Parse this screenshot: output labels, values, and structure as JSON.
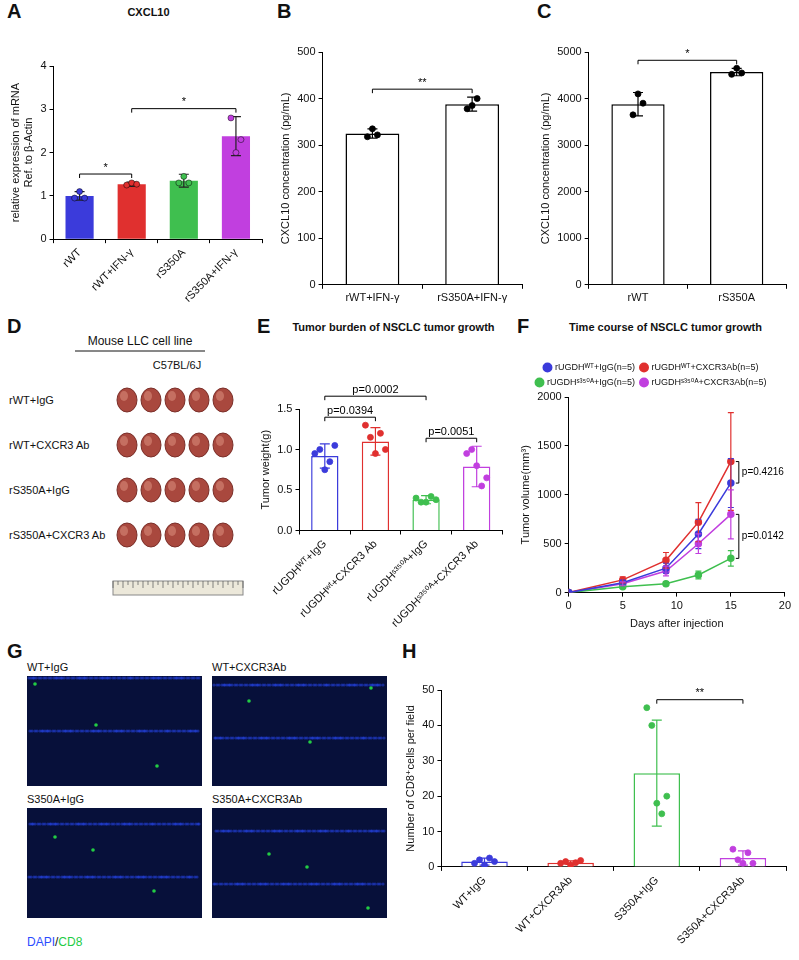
{
  "chart_data": [
    {
      "panel": "A",
      "type": "bar",
      "title": "CXCL10",
      "y_label": "relative expression of mRNA Ref. to β-Actin",
      "categories": [
        "rWT",
        "rWT+IFN-γ",
        "rS350A",
        "rS350A+IFN-γ"
      ],
      "values": [
        1.0,
        1.27,
        1.35,
        2.38
      ],
      "errors": [
        0.1,
        0.05,
        0.15,
        0.45
      ],
      "points": [
        [
          0.95,
          1.1,
          0.95
        ],
        [
          1.25,
          1.3,
          1.27
        ],
        [
          1.3,
          1.45,
          1.3
        ],
        [
          2.8,
          2.0,
          2.3
        ]
      ],
      "colors": [
        "#3b3bdb",
        "#e0302f",
        "#3fbf4f",
        "#c13fdf"
      ],
      "marker": "filled",
      "ylim": [
        0,
        4
      ],
      "yticks": [
        0,
        1,
        2,
        3,
        4
      ],
      "grid": false,
      "annotations": [
        {
          "text": "*",
          "from": 0,
          "to": 1
        },
        {
          "text": "*",
          "from": 1,
          "to": 3
        }
      ]
    },
    {
      "panel": "B",
      "type": "bar",
      "y_label": "CXCL10 concentration (pg/mL)",
      "categories": [
        "rWT+IFN-γ",
        "rS350A+IFN-γ"
      ],
      "values": [
        325,
        388
      ],
      "errors": [
        10,
        15
      ],
      "points": [
        [
          318,
          335,
          322
        ],
        [
          378,
          385,
          400
        ]
      ],
      "color": "#000000",
      "marker": "hollow",
      "ylim": [
        0,
        500
      ],
      "yticks": [
        0,
        100,
        200,
        300,
        400,
        500
      ],
      "grid": false,
      "annotations": [
        {
          "text": "**",
          "from": 0,
          "to": 1
        }
      ]
    },
    {
      "panel": "C",
      "type": "bar",
      "y_label": "CXCL10 concentration (pg/mL)",
      "categories": [
        "rWT",
        "rS350A"
      ],
      "values": [
        3880,
        4570
      ],
      "errors": [
        250,
        80
      ],
      "points": [
        [
          3650,
          4100,
          3900
        ],
        [
          4520,
          4650,
          4550
        ]
      ],
      "color": "#000000",
      "marker": "hollow",
      "ylim": [
        0,
        5000
      ],
      "yticks": [
        0,
        1000,
        2000,
        3000,
        4000,
        5000
      ],
      "grid": false,
      "annotations": [
        {
          "text": "*",
          "from": 0,
          "to": 1
        }
      ]
    },
    {
      "panel": "E",
      "type": "bar",
      "title": "Tumor burden of NSCLC tumor growth",
      "y_label": "Tumor weight(g)",
      "categories": [
        "rUGDHᵂᵀ+IgG",
        "rUGDHʷᵗ+CXCR3 Ab",
        "rUGDHˢ³⁵⁰ᴬ+IgG",
        "rUGDHˢ³⁵⁰ᴬ+CXCR3 Ab"
      ],
      "values": [
        0.92,
        1.1,
        0.38,
        0.79
      ],
      "errors": [
        0.15,
        0.17,
        0.05,
        0.25
      ],
      "points": [
        [
          0.95,
          1.0,
          0.75,
          0.85,
          1.05
        ],
        [
          1.3,
          1.15,
          0.95,
          1.2,
          1.0
        ],
        [
          0.4,
          0.35,
          0.35,
          0.42,
          0.38
        ],
        [
          0.95,
          1.0,
          0.8,
          0.55,
          0.65
        ]
      ],
      "colors": [
        "#3b3bdb",
        "#e0302f",
        "#3fbf4f",
        "#c13fdf"
      ],
      "marker": "hollow",
      "ylim": [
        0,
        1.5
      ],
      "yticks": [
        {
          "value": 0,
          "label": "0.0"
        },
        0.5,
        {
          "value": 1,
          "label": "1.0"
        },
        1.5
      ],
      "grid": false,
      "annotations": [
        {
          "text": "p=0.0394",
          "from": 0,
          "to": 1
        },
        {
          "text": "p=0.0002",
          "from": 0,
          "to": 2
        },
        {
          "text": "p=0.0051",
          "from": 2,
          "to": 3
        }
      ]
    },
    {
      "panel": "F",
      "type": "line",
      "title": "Time course of NSCLC tumor growth",
      "x_label": "Days after injection",
      "y_label": "Tumor volume(mm³)",
      "x": [
        0,
        5,
        9,
        12,
        15
      ],
      "series": [
        {
          "name": "rUGDHᵂᵀ+IgG(n=5)",
          "color": "#3b3bdb",
          "values": [
            0,
            100,
            250,
            600,
            1120
          ],
          "errors": [
            0,
            20,
            50,
            150,
            250
          ]
        },
        {
          "name": "rUGDHᵂᵀ+CXCR3Ab(n=5)",
          "color": "#e0302f",
          "values": [
            0,
            130,
            330,
            720,
            1340
          ],
          "errors": [
            0,
            30,
            80,
            200,
            500
          ]
        },
        {
          "name": "rUGDHˢ³⁵⁰ᴬ+IgG(n=5)",
          "color": "#3fbf4f",
          "values": [
            0,
            60,
            90,
            180,
            350
          ],
          "errors": [
            0,
            15,
            20,
            40,
            80
          ]
        },
        {
          "name": "rUGDHˢ³⁵⁰ᴬ+CXCR3Ab(n=5)",
          "color": "#c13fdf",
          "values": [
            0,
            90,
            220,
            500,
            800
          ],
          "errors": [
            0,
            20,
            50,
            100,
            250
          ]
        }
      ],
      "xlim": [
        0,
        20
      ],
      "xticks": [
        0,
        5,
        10,
        15,
        20
      ],
      "ylim": [
        0,
        2000
      ],
      "yticks": [
        0,
        500,
        1000,
        1500,
        2000
      ],
      "grid": false,
      "legend": "top",
      "marker": "circle",
      "annotations": [
        {
          "text": "p=0.4216",
          "series": [
            0,
            1
          ]
        },
        {
          "text": "p=0.0142",
          "series": [
            2,
            3
          ]
        }
      ]
    },
    {
      "panel": "H",
      "type": "bar",
      "y_label": "Number of CD8⁺cells per field",
      "categories": [
        "WT+IgG",
        "WT+CXCR3Ab",
        "S350A+IgG",
        "S350A+CXCR3Ab"
      ],
      "values": [
        1.5,
        1.2,
        26.5,
        2.5
      ],
      "errors": [
        1,
        0.5,
        15,
        2
      ],
      "points": [
        [
          1,
          2,
          0.5,
          2.5,
          1.5
        ],
        [
          1,
          1.5,
          0.5,
          1.2,
          1.8
        ],
        [
          45,
          40,
          18,
          15,
          20
        ],
        [
          5,
          2,
          1,
          4,
          1
        ]
      ],
      "colors": [
        "#3b3bdb",
        "#e0302f",
        "#3fbf4f",
        "#c13fdf"
      ],
      "marker": "hollow",
      "ylim": [
        0,
        50
      ],
      "yticks": [
        0,
        10,
        20,
        30,
        40,
        50
      ],
      "grid": false,
      "annotations": [
        {
          "text": "**",
          "from": 2,
          "to": 3
        }
      ]
    }
  ],
  "images": [
    {
      "panel": "D",
      "title": "Mouse LLC cell line",
      "subtitle": "C57BL/6J",
      "rows": [
        "rWT+IgG",
        "rWT+CXCR3 Ab",
        "rS350A+IgG",
        "rS350A+CXCR3 Ab"
      ]
    },
    {
      "panel": "G",
      "images": [
        "WT+IgG",
        "WT+CXCR3Ab",
        "S350A+IgG",
        "S350A+CXCR3Ab"
      ],
      "channels": [
        {
          "name": "DAPI",
          "color": "#2a4cff"
        },
        {
          "name": "CD8",
          "color": "#22cc44"
        }
      ],
      "separator": "/"
    }
  ]
}
